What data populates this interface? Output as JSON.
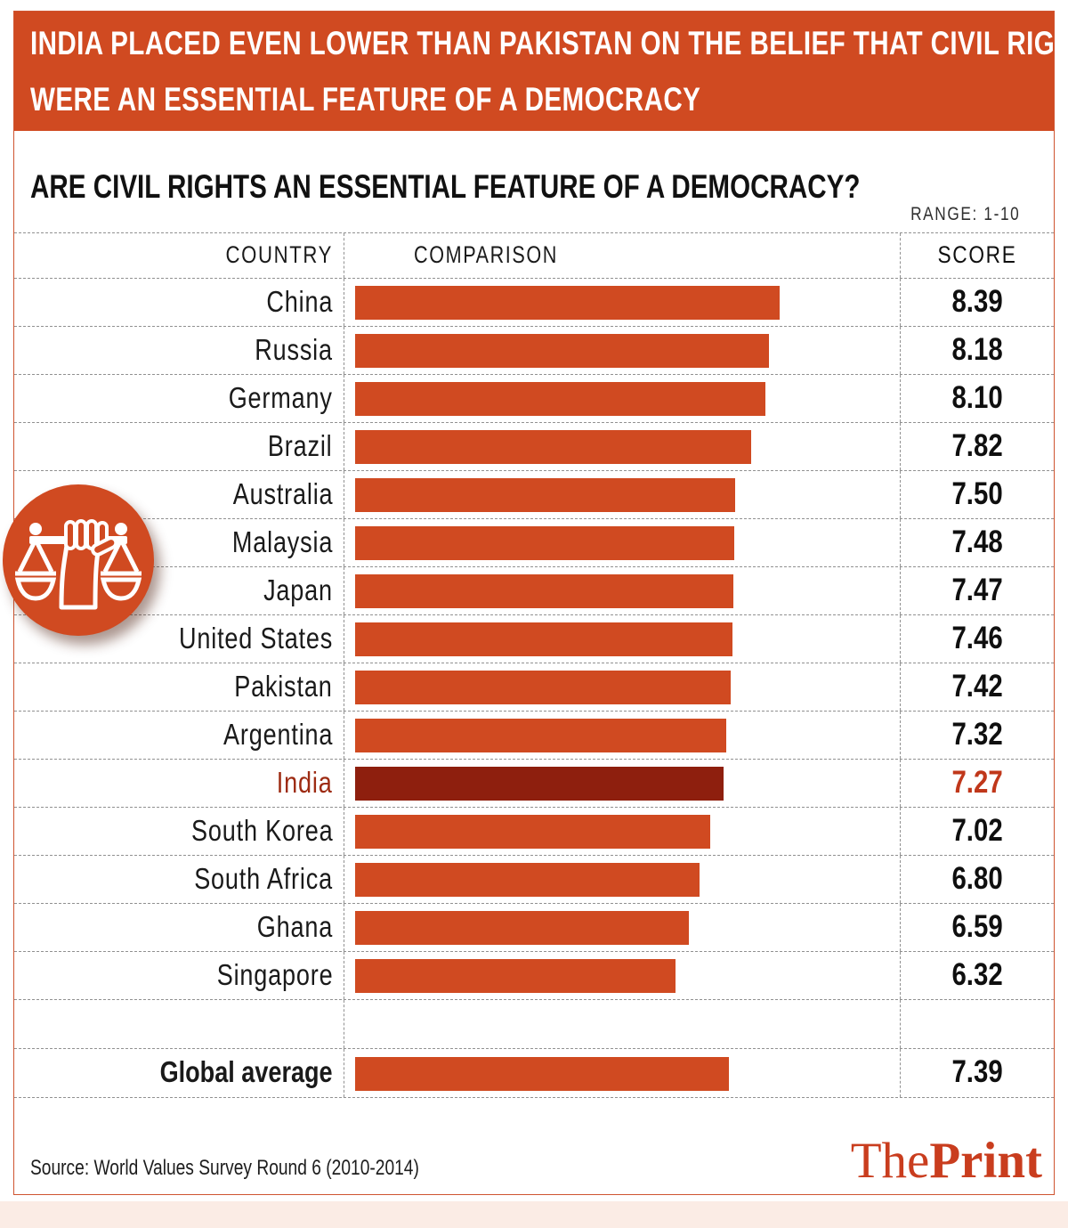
{
  "banner": {
    "line1": "INDIA PLACED EVEN LOWER THAN PAKISTAN ON THE BELIEF THAT CIVIL RIGHTS",
    "line2": "WERE AN ESSENTIAL FEATURE OF A DEMOCRACY"
  },
  "title": "ARE CIVIL RIGHTS AN ESSENTIAL FEATURE OF A DEMOCRACY?",
  "range_label": "RANGE: 1-10",
  "columns": {
    "country": "COUNTRY",
    "comparison": "COMPARISON",
    "score": "SCORE"
  },
  "source": "Source: World Values Survey Round 6 (2010-2014)",
  "logo": {
    "part1": "The",
    "part2": "Print"
  },
  "icon": "justice-scales-in-fist-icon",
  "colors": {
    "accent": "#d04a21",
    "highlight_bar": "#8e1f0e",
    "highlight_label": "#9d2b12",
    "highlight_score": "#c0371a",
    "logo": "#c93d1e"
  },
  "chart_data": {
    "type": "bar",
    "orientation": "horizontal",
    "title": "ARE CIVIL RIGHTS AN ESSENTIAL FEATURE OF A DEMOCRACY?",
    "range": [
      1,
      10
    ],
    "grid": "dashed",
    "categories": [
      "China",
      "Russia",
      "Germany",
      "Brazil",
      "Australia",
      "Malaysia",
      "Japan",
      "United States",
      "Pakistan",
      "Argentina",
      "India",
      "South Korea",
      "South Africa",
      "Ghana",
      "Singapore"
    ],
    "values": [
      8.39,
      8.18,
      8.1,
      7.82,
      7.5,
      7.48,
      7.47,
      7.46,
      7.42,
      7.32,
      7.27,
      7.02,
      6.8,
      6.59,
      6.32
    ],
    "value_labels": [
      "8.39",
      "8.18",
      "8.10",
      "7.82",
      "7.50",
      "7.48",
      "7.47",
      "7.46",
      "7.42",
      "7.32",
      "7.27",
      "7.02",
      "6.80",
      "6.59",
      "6.32"
    ],
    "highlight_category": "India",
    "global_average": {
      "label": "Global average",
      "value": 7.39,
      "value_label": "7.39"
    }
  }
}
